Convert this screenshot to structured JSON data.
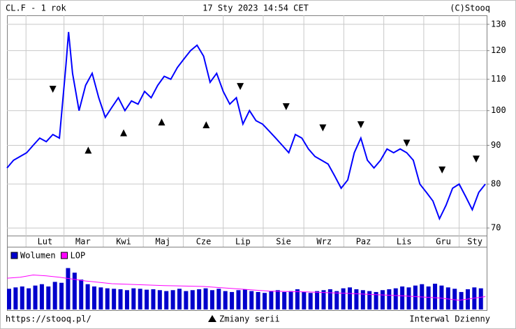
{
  "header": {
    "title": "CL.F - 1 rok",
    "date": "17 Sty 2023 14:54 CET",
    "source": "(C)Stooq"
  },
  "footer": {
    "url": "https://stooq.pl/",
    "interval": "Interwal Dzienny"
  },
  "chart_data": [
    {
      "type": "line",
      "log": true,
      "grid": true,
      "xlim": [
        0,
        366
      ],
      "ylim": [
        68.4,
        133.6
      ],
      "xticks": [
        {
          "value": 29,
          "label": "Lut"
        },
        {
          "value": 58,
          "label": "Mar"
        },
        {
          "value": 89,
          "label": "Kwi"
        },
        {
          "value": 119,
          "label": "Maj"
        },
        {
          "value": 150,
          "label": "Cze"
        },
        {
          "value": 180,
          "label": "Lip"
        },
        {
          "value": 211,
          "label": "Sie"
        },
        {
          "value": 242,
          "label": "Wrz"
        },
        {
          "value": 272,
          "label": "Paz"
        },
        {
          "value": 303,
          "label": "Lis"
        },
        {
          "value": 333,
          "label": "Gru"
        },
        {
          "value": 357,
          "label": "Sty"
        }
      ],
      "yticks": [
        70,
        80,
        90,
        100,
        110,
        120,
        130
      ],
      "series": [
        {
          "color": "#0000ff",
          "x": [
            0,
            5,
            10,
            15,
            20,
            25,
            30,
            35,
            40,
            45,
            47,
            50,
            55,
            60,
            65,
            70,
            75,
            80,
            85,
            90,
            95,
            100,
            105,
            110,
            115,
            120,
            125,
            130,
            135,
            140,
            145,
            150,
            155,
            160,
            165,
            170,
            175,
            180,
            185,
            190,
            195,
            200,
            205,
            210,
            215,
            220,
            225,
            230,
            235,
            240,
            245,
            250,
            255,
            260,
            265,
            270,
            275,
            280,
            285,
            290,
            295,
            300,
            305,
            310,
            315,
            320,
            325,
            330,
            335,
            340,
            345,
            350,
            355,
            360,
            365
          ],
          "values": [
            84,
            86,
            87,
            88,
            90,
            92,
            91,
            93,
            92,
            115,
            127,
            112,
            100,
            108,
            112,
            104,
            98,
            101,
            104,
            100,
            103,
            102,
            106,
            104,
            108,
            111,
            110,
            114,
            117,
            120,
            122,
            118,
            109,
            112,
            106,
            102,
            104,
            96,
            100,
            97,
            96,
            94,
            92,
            90,
            88,
            93,
            92,
            89,
            87,
            86,
            85,
            82,
            79,
            81,
            88,
            92,
            86,
            84,
            86,
            89,
            88,
            89,
            88,
            86,
            80,
            78,
            76,
            72,
            75,
            79,
            80,
            77,
            74,
            78,
            80
          ]
        },
        {
          "name": "Zmiany serii",
          "color": "#000000",
          "x": [
            35,
            62,
            89,
            118,
            152,
            178,
            213,
            241,
            270,
            305,
            332,
            358
          ],
          "values": [
            106.7,
            88.7,
            93.5,
            96.6,
            95.8,
            107.6,
            101.2,
            94.9,
            95.8,
            90.6,
            83.5,
            86.3
          ],
          "direction": [
            "down",
            "up",
            "up",
            "up",
            "up",
            "down",
            "down",
            "down",
            "down",
            "down",
            "down",
            "down"
          ]
        }
      ]
    },
    {
      "type": "volume",
      "xlim": [
        0,
        366
      ],
      "ylim": [
        0,
        100
      ],
      "series": [
        {
          "name": "Wolumen",
          "color": "#0000cc",
          "x": [
            0,
            5,
            10,
            15,
            20,
            25,
            30,
            35,
            40,
            45,
            50,
            55,
            60,
            65,
            70,
            75,
            80,
            85,
            90,
            95,
            100,
            105,
            110,
            115,
            120,
            125,
            130,
            135,
            140,
            145,
            150,
            155,
            160,
            165,
            170,
            175,
            180,
            185,
            190,
            195,
            200,
            205,
            210,
            215,
            220,
            225,
            230,
            235,
            240,
            245,
            250,
            255,
            260,
            265,
            270,
            275,
            280,
            285,
            290,
            295,
            300,
            305,
            310,
            315,
            320,
            325,
            330,
            335,
            340,
            345,
            350,
            355,
            360
          ],
          "values": [
            45,
            48,
            50,
            46,
            52,
            55,
            50,
            60,
            58,
            90,
            80,
            65,
            55,
            50,
            48,
            46,
            45,
            44,
            42,
            46,
            45,
            43,
            44,
            42,
            40,
            42,
            45,
            40,
            42,
            44,
            46,
            42,
            45,
            40,
            38,
            42,
            44,
            40,
            38,
            36,
            40,
            42,
            38,
            40,
            44,
            38,
            36,
            40,
            42,
            44,
            40,
            46,
            48,
            44,
            42,
            40,
            38,
            42,
            44,
            46,
            50,
            48,
            52,
            55,
            50,
            56,
            52,
            48,
            45,
            38,
            44,
            48,
            46
          ]
        },
        {
          "name": "LOP",
          "color": "#ff00ff",
          "x": [
            0,
            10,
            20,
            30,
            40,
            50,
            60,
            80,
            100,
            120,
            150,
            170,
            200,
            230,
            260,
            300,
            330,
            345,
            365
          ],
          "values": [
            68,
            70,
            75,
            73,
            70,
            66,
            62,
            56,
            54,
            52,
            50,
            46,
            40,
            38,
            35,
            30,
            25,
            20,
            28
          ]
        }
      ]
    }
  ]
}
